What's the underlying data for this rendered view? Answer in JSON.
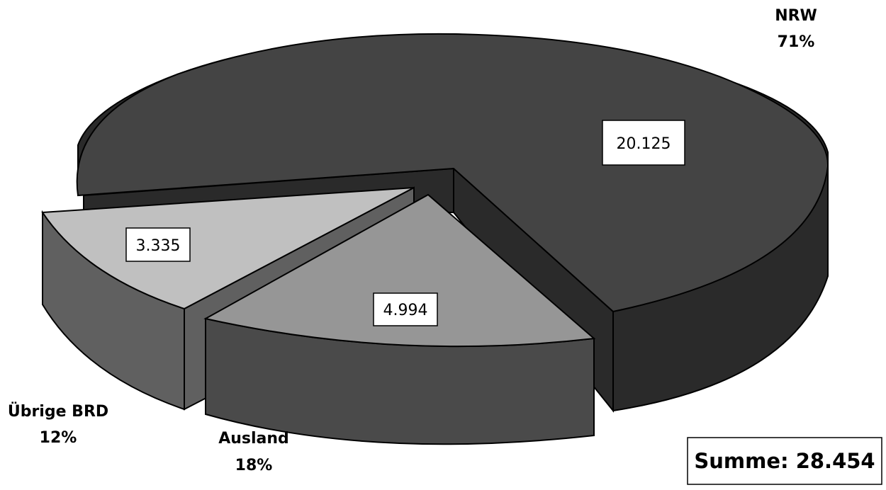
{
  "chart_data": {
    "type": "pie",
    "style": "3d-exploded",
    "slices": [
      {
        "name": "NRW",
        "value": 20125,
        "value_label": "20.125",
        "percent_label": "71%",
        "color": "#444444",
        "side_color": "#2a2a2a"
      },
      {
        "name": "Ausland",
        "value": 4994,
        "value_label": "4.994",
        "percent_label": "18%",
        "color": "#969696",
        "side_color": "#4a4a4a"
      },
      {
        "name": "Übrige BRD",
        "value": 3335,
        "value_label": "3.335",
        "percent_label": "12%",
        "color": "#c0c0c0",
        "side_color": "#606060"
      }
    ],
    "total_label": "Summe: 28.454"
  }
}
